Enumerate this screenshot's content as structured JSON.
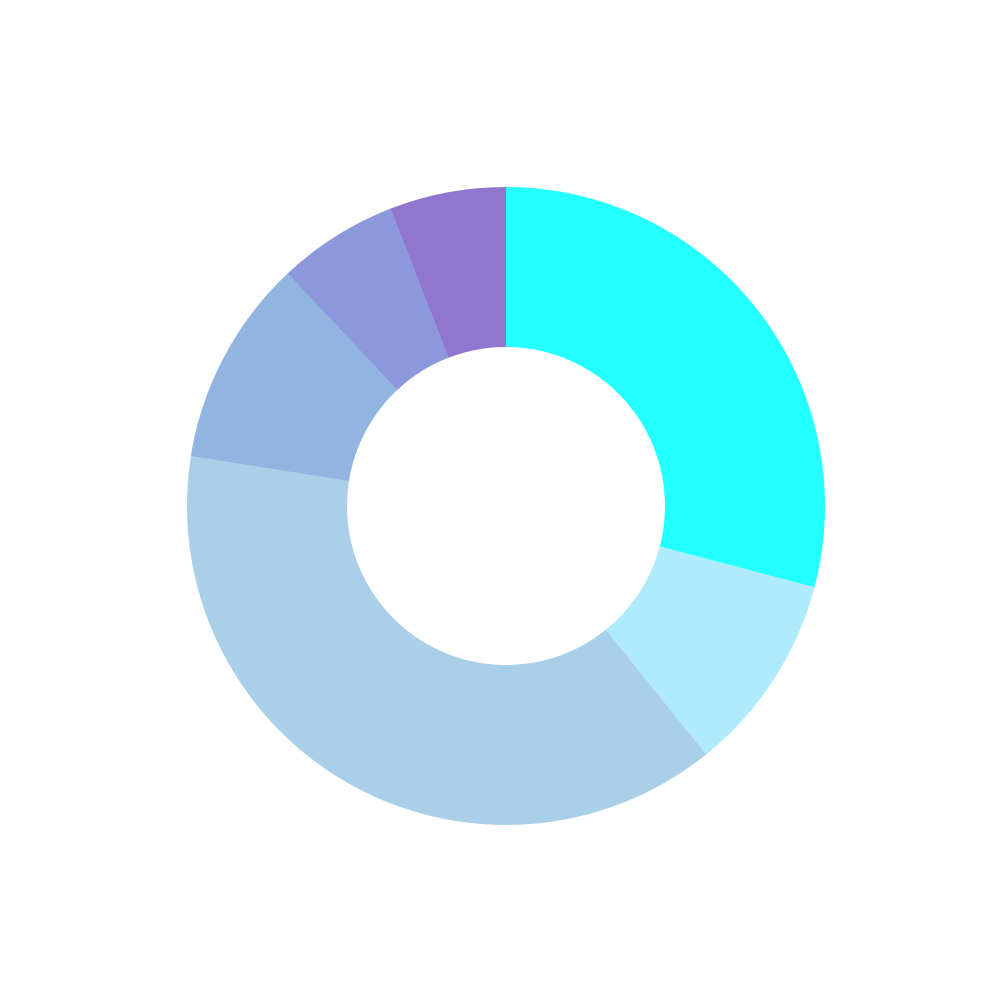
{
  "chart_data": {
    "type": "pie",
    "variant": "donut",
    "title": "",
    "legend": "none",
    "start_angle": "12 o'clock",
    "direction": "clockwise",
    "slices": [
      {
        "value": 29.1,
        "color": "#24FFFF"
      },
      {
        "value": 10.1,
        "color": "#B0EBFB"
      },
      {
        "value": 38.3,
        "color": "#A9CFE9"
      },
      {
        "value": 10.5,
        "color": "#92B4E0"
      },
      {
        "value": 6.1,
        "color": "#8B98DB"
      },
      {
        "value": 5.9,
        "color": "#9176CF"
      }
    ]
  }
}
